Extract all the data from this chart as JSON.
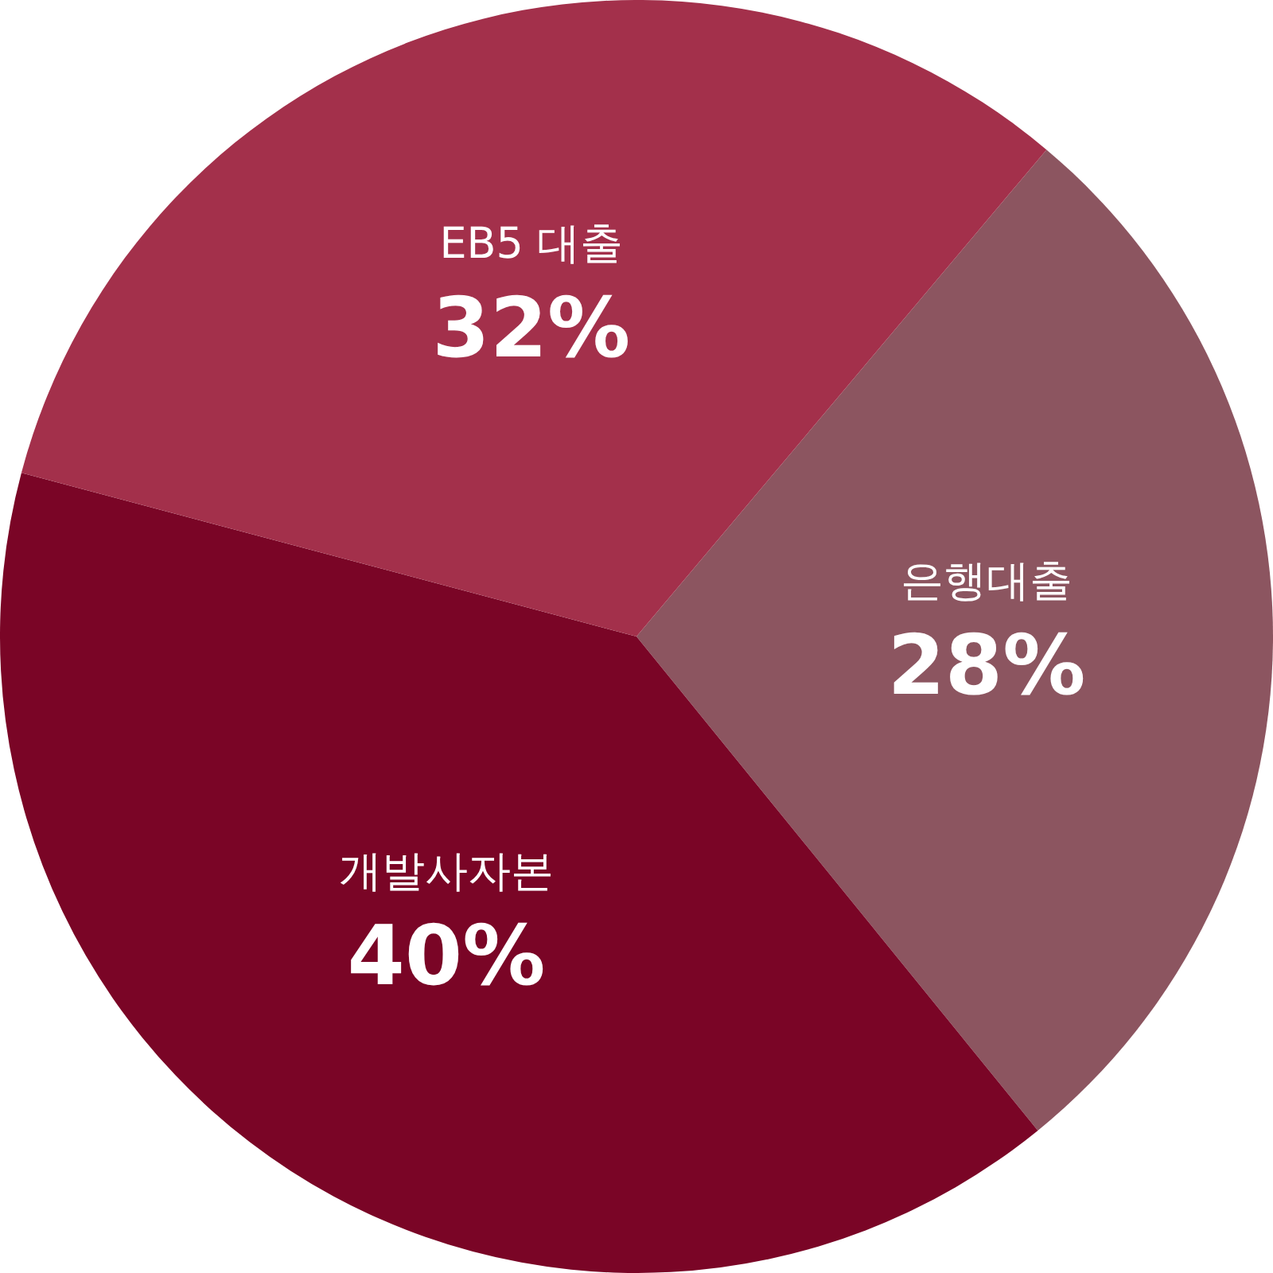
{
  "chart_data": {
    "type": "pie",
    "categories": [
      "은행대출",
      "개발사자본",
      "EB5 대출"
    ],
    "values": [
      28,
      40,
      32
    ],
    "value_labels": [
      "28%",
      "40%",
      "32%"
    ],
    "colors": [
      "#8c5560",
      "#7a0526",
      "#a3304b"
    ]
  }
}
